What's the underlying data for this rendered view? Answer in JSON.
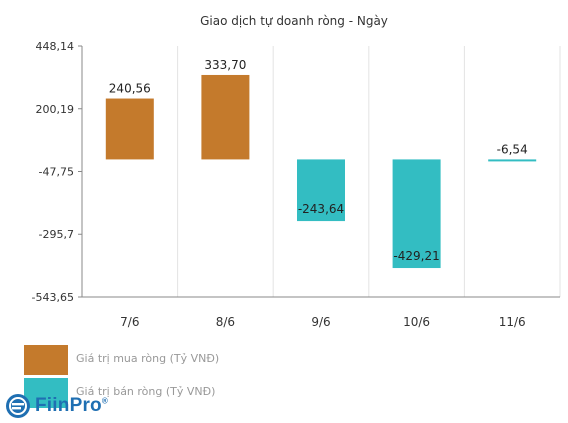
{
  "chart_data": {
    "type": "bar",
    "title": "Giao dịch tự doanh ròng - Ngày",
    "categories": [
      "7/6",
      "8/6",
      "9/6",
      "10/6",
      "11/6"
    ],
    "values": [
      240.56,
      333.7,
      -243.64,
      -429.21,
      -6.54
    ],
    "data_labels": [
      "240,56",
      "333,70",
      "-243,64",
      "-429,21",
      "-6,54"
    ],
    "yticks": [
      448.14,
      200.19,
      -47.75,
      -295.7,
      -543.65
    ],
    "ytick_labels": [
      "448,14",
      "200,19",
      "-47,75",
      "-295,7",
      "-543,65"
    ],
    "ylim": [
      -543.65,
      448.14
    ],
    "legend": [
      {
        "label": "Giá trị mua ròng (Tỷ VNĐ)",
        "color": "#c47a2c"
      },
      {
        "label": "Giá trị bán ròng (Tỷ VNĐ)",
        "color": "#33bdc2"
      }
    ],
    "colors": {
      "positive": "#c47a2c",
      "negative": "#33bdc2"
    },
    "grid": true,
    "legend_position": "bottom-left"
  },
  "brand": {
    "name": "FiinPro",
    "mark": "®"
  }
}
